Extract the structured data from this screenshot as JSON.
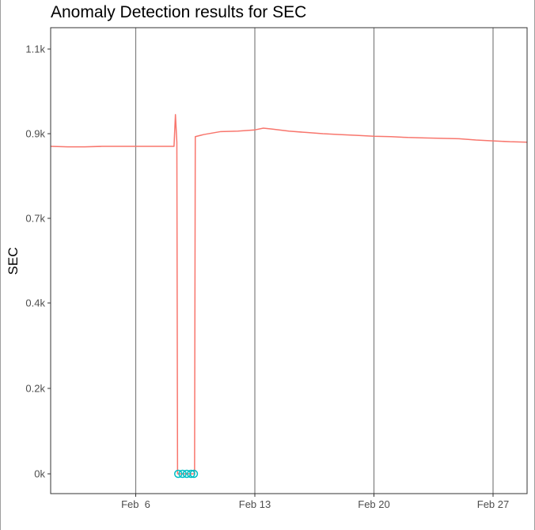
{
  "chart_data": {
    "type": "line",
    "title": "Anomaly Detection results for SEC",
    "xlabel": "",
    "ylabel": "SEC",
    "x_ticks": [
      {
        "date": "2024-02-06",
        "label": "Feb  6"
      },
      {
        "date": "2024-02-13",
        "label": "Feb 13"
      },
      {
        "date": "2024-02-20",
        "label": "Feb 20"
      },
      {
        "date": "2024-02-27",
        "label": "Feb 27"
      }
    ],
    "y_ticks": [
      {
        "value": 0,
        "label": "0k"
      },
      {
        "value": 200,
        "label": "0.2k"
      },
      {
        "value": 400,
        "label": "0.4k"
      },
      {
        "value": 700,
        "label": "0.7k"
      },
      {
        "value": 900,
        "label": "0.9k"
      },
      {
        "value": 1100,
        "label": "1.1k"
      }
    ],
    "xlim": [
      "2024-02-01",
      "2024-02-29"
    ],
    "ylim": [
      -50,
      1150
    ],
    "grid": "vertical-major",
    "series": [
      {
        "color": "#f8766d",
        "points": [
          [
            "2024-02-01",
            870
          ],
          [
            "2024-02-02",
            869
          ],
          [
            "2024-02-03",
            869
          ],
          [
            "2024-02-04",
            870
          ],
          [
            "2024-02-05",
            870
          ],
          [
            "2024-02-06",
            870
          ],
          [
            "2024-02-07",
            870
          ],
          [
            "2024-02-08",
            870
          ],
          [
            "2024-02-08T06:00",
            870
          ],
          [
            "2024-02-08T08:00",
            945
          ],
          [
            "2024-02-08T10:00",
            880
          ],
          [
            "2024-02-08T11:00",
            0
          ],
          [
            "2024-02-09T11:00",
            0
          ],
          [
            "2024-02-09T12:00",
            893
          ],
          [
            "2024-02-10",
            898
          ],
          [
            "2024-02-11",
            905
          ],
          [
            "2024-02-12",
            906
          ],
          [
            "2024-02-13",
            909
          ],
          [
            "2024-02-13T12:00",
            913
          ],
          [
            "2024-02-14",
            911
          ],
          [
            "2024-02-15",
            906
          ],
          [
            "2024-02-16",
            903
          ],
          [
            "2024-02-17",
            900
          ],
          [
            "2024-02-18",
            898
          ],
          [
            "2024-02-19",
            896
          ],
          [
            "2024-02-20",
            894
          ],
          [
            "2024-02-21",
            893
          ],
          [
            "2024-02-22",
            891
          ],
          [
            "2024-02-23",
            890
          ],
          [
            "2024-02-24",
            889
          ],
          [
            "2024-02-25",
            888
          ],
          [
            "2024-02-26",
            885
          ],
          [
            "2024-02-27",
            883
          ],
          [
            "2024-02-28",
            881
          ],
          [
            "2024-02-29",
            880
          ]
        ]
      }
    ],
    "anomalies": {
      "color": "#00bfc4",
      "points": [
        [
          "2024-02-08T12:00",
          0
        ],
        [
          "2024-02-08T18:00",
          0
        ],
        [
          "2024-02-09",
          0
        ],
        [
          "2024-02-09T06:00",
          0
        ],
        [
          "2024-02-09T10:00",
          0
        ]
      ]
    }
  }
}
